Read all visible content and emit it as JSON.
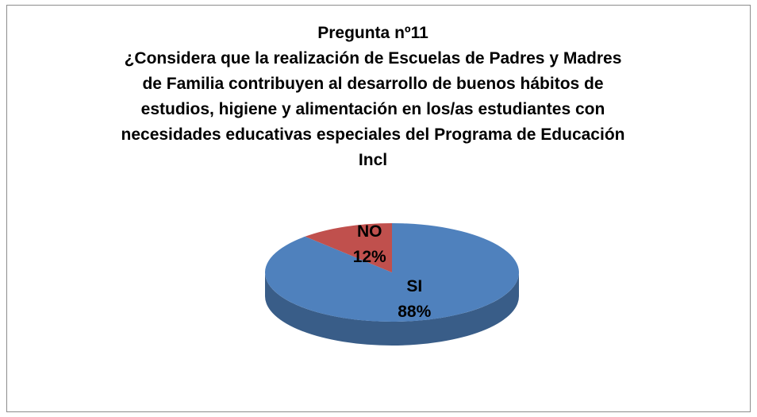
{
  "chart_data": {
    "type": "pie",
    "title": "Pregunta nº11",
    "subtitle": "¿Considera que la realización de Escuelas de Padres y Madres de Familia contribuyen al desarrollo de buenos hábitos de estudios, higiene y alimentación en los/as estudiantes con necesidades educativas especiales del Programa de Educación Incl",
    "categories": [
      "SI",
      "NO"
    ],
    "values": [
      88,
      12
    ],
    "value_labels": [
      "88%",
      "12%"
    ],
    "colors": [
      "#4f81bd",
      "#c0504d"
    ]
  }
}
